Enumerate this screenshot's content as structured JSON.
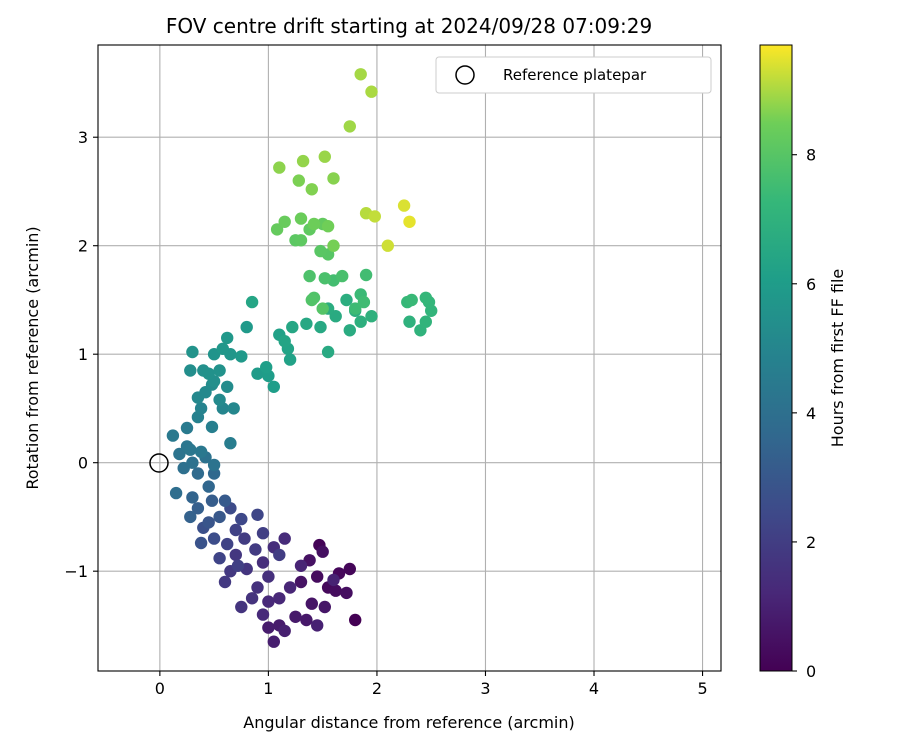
{
  "chart_data": {
    "type": "scatter",
    "title": "FOV centre drift starting at 2024/09/28 07:09:29",
    "xlabel": "Angular distance from reference (arcmin)",
    "ylabel": "Rotation from reference (arcmin)",
    "xlim": [
      -0.57,
      5.17
    ],
    "ylim": [
      -1.92,
      3.85
    ],
    "xticks": [
      0,
      1,
      2,
      3,
      4,
      5
    ],
    "yticks": [
      -1,
      0,
      1,
      2,
      3
    ],
    "xtick_labels": [
      "0",
      "1",
      "2",
      "3",
      "4",
      "5"
    ],
    "ytick_labels": [
      "−1",
      "0",
      "1",
      "2",
      "3"
    ],
    "grid": true,
    "colormap": "viridis",
    "colorbar": {
      "label": "Hours from first FF file",
      "range": [
        0,
        9.7
      ],
      "ticks": [
        0,
        2,
        4,
        6,
        8
      ],
      "tick_labels": [
        "0",
        "2",
        "4",
        "6",
        "8"
      ]
    },
    "legend": {
      "position": "top-right",
      "entries": [
        {
          "label": "Reference platepar",
          "marker": "open-circle"
        }
      ]
    },
    "reference_point": {
      "x": 0,
      "y": 0
    },
    "points": [
      [
        1.8,
        -1.45,
        0.0
      ],
      [
        1.47,
        -0.76,
        0.1
      ],
      [
        1.75,
        -0.98,
        0.15
      ],
      [
        1.65,
        -1.02,
        0.2
      ],
      [
        1.55,
        -1.15,
        0.25
      ],
      [
        1.45,
        -1.05,
        0.3
      ],
      [
        1.62,
        -1.18,
        0.35
      ],
      [
        1.72,
        -1.2,
        0.4
      ],
      [
        1.5,
        -0.82,
        0.45
      ],
      [
        1.38,
        -0.9,
        0.5
      ],
      [
        1.3,
        -1.1,
        0.55
      ],
      [
        1.4,
        -1.3,
        0.6
      ],
      [
        1.52,
        -1.33,
        0.65
      ],
      [
        1.35,
        -1.45,
        0.7
      ],
      [
        1.25,
        -1.42,
        0.75
      ],
      [
        1.1,
        -1.5,
        0.8
      ],
      [
        1.0,
        -1.52,
        0.85
      ],
      [
        1.05,
        -1.65,
        0.9
      ],
      [
        1.15,
        -1.55,
        0.95
      ],
      [
        1.45,
        -1.5,
        1.0
      ],
      [
        1.6,
        -1.08,
        1.05
      ],
      [
        1.3,
        -0.95,
        1.1
      ],
      [
        1.2,
        -1.15,
        1.15
      ],
      [
        1.1,
        -1.25,
        1.2
      ],
      [
        1.0,
        -1.28,
        1.25
      ],
      [
        0.95,
        -1.4,
        1.3
      ],
      [
        1.15,
        -0.7,
        1.35
      ],
      [
        1.05,
        -0.78,
        1.4
      ],
      [
        0.95,
        -0.92,
        1.45
      ],
      [
        1.0,
        -1.05,
        1.5
      ],
      [
        0.9,
        -1.15,
        1.55
      ],
      [
        0.85,
        -1.25,
        1.6
      ],
      [
        0.75,
        -1.33,
        1.65
      ],
      [
        0.8,
        -0.98,
        1.7
      ],
      [
        0.7,
        -0.85,
        1.75
      ],
      [
        0.65,
        -1.0,
        1.8
      ],
      [
        0.6,
        -1.1,
        1.85
      ],
      [
        0.88,
        -0.8,
        1.9
      ],
      [
        0.78,
        -0.7,
        1.95
      ],
      [
        1.1,
        -0.85,
        2.0
      ],
      [
        0.95,
        -0.65,
        2.05
      ],
      [
        0.72,
        -0.95,
        2.1
      ],
      [
        0.7,
        -0.62,
        2.15
      ],
      [
        0.62,
        -0.75,
        2.2
      ],
      [
        0.55,
        -0.88,
        2.25
      ],
      [
        0.9,
        -0.48,
        2.3
      ],
      [
        0.75,
        -0.52,
        2.4
      ],
      [
        0.65,
        -0.42,
        2.5
      ],
      [
        0.5,
        -0.7,
        2.6
      ],
      [
        0.4,
        -0.6,
        2.7
      ],
      [
        0.38,
        -0.74,
        2.8
      ],
      [
        0.45,
        -0.55,
        2.9
      ],
      [
        0.55,
        -0.5,
        3.0
      ],
      [
        0.6,
        -0.35,
        3.1
      ],
      [
        0.48,
        -0.35,
        3.2
      ],
      [
        0.35,
        -0.42,
        3.3
      ],
      [
        0.28,
        -0.5,
        3.4
      ],
      [
        0.3,
        -0.32,
        3.5
      ],
      [
        0.45,
        -0.22,
        3.6
      ],
      [
        0.5,
        -0.1,
        3.7
      ],
      [
        0.35,
        -0.1,
        3.8
      ],
      [
        0.15,
        -0.28,
        3.9
      ],
      [
        0.22,
        -0.05,
        4.0
      ],
      [
        0.3,
        0.0,
        4.05
      ],
      [
        0.42,
        0.05,
        4.1
      ],
      [
        0.5,
        -0.02,
        4.15
      ],
      [
        0.18,
        0.08,
        4.2
      ],
      [
        0.25,
        0.15,
        4.3
      ],
      [
        0.28,
        0.12,
        4.35
      ],
      [
        0.38,
        0.1,
        4.4
      ],
      [
        0.12,
        0.25,
        4.45
      ],
      [
        0.25,
        0.32,
        4.5
      ],
      [
        0.65,
        0.18,
        4.6
      ],
      [
        0.48,
        0.33,
        4.7
      ],
      [
        0.35,
        0.42,
        4.8
      ],
      [
        0.38,
        0.5,
        4.9
      ],
      [
        0.58,
        0.5,
        5.0
      ],
      [
        0.68,
        0.5,
        5.05
      ],
      [
        0.35,
        0.6,
        5.1
      ],
      [
        0.42,
        0.65,
        5.15
      ],
      [
        0.55,
        0.58,
        5.2
      ],
      [
        0.48,
        0.72,
        5.25
      ],
      [
        0.62,
        0.7,
        5.3
      ],
      [
        0.28,
        0.85,
        5.35
      ],
      [
        0.5,
        0.75,
        5.4
      ],
      [
        0.4,
        0.85,
        5.45
      ],
      [
        0.45,
        0.82,
        5.5
      ],
      [
        0.55,
        0.85,
        5.55
      ],
      [
        0.3,
        1.02,
        5.6
      ],
      [
        0.5,
        1.0,
        5.65
      ],
      [
        0.65,
        1.0,
        5.7
      ],
      [
        0.58,
        1.05,
        5.75
      ],
      [
        0.62,
        1.15,
        5.8
      ],
      [
        0.75,
        0.98,
        5.85
      ],
      [
        0.8,
        1.25,
        5.9
      ],
      [
        0.9,
        0.82,
        5.95
      ],
      [
        1.0,
        0.8,
        6.0
      ],
      [
        1.05,
        0.7,
        6.05
      ],
      [
        0.98,
        0.88,
        6.1
      ],
      [
        1.1,
        1.18,
        6.2
      ],
      [
        1.2,
        0.95,
        6.25
      ],
      [
        1.18,
        1.05,
        6.3
      ],
      [
        1.15,
        1.12,
        6.35
      ],
      [
        0.85,
        1.48,
        6.4
      ],
      [
        1.22,
        1.25,
        6.45
      ],
      [
        1.35,
        1.28,
        6.5
      ],
      [
        1.48,
        1.25,
        6.55
      ],
      [
        1.55,
        1.02,
        6.6
      ],
      [
        1.62,
        1.35,
        6.65
      ],
      [
        1.75,
        1.22,
        6.7
      ],
      [
        1.55,
        1.42,
        6.75
      ],
      [
        1.72,
        1.5,
        6.8
      ],
      [
        1.8,
        1.4,
        6.85
      ],
      [
        1.85,
        1.3,
        6.9
      ],
      [
        1.95,
        1.35,
        6.95
      ],
      [
        2.3,
        1.3,
        7.0
      ],
      [
        2.4,
        1.22,
        7.05
      ],
      [
        2.45,
        1.3,
        7.1
      ],
      [
        2.5,
        1.4,
        7.15
      ],
      [
        2.48,
        1.48,
        7.2
      ],
      [
        2.45,
        1.52,
        7.25
      ],
      [
        2.28,
        1.48,
        7.3
      ],
      [
        2.32,
        1.5,
        7.35
      ],
      [
        1.85,
        1.55,
        7.4
      ],
      [
        1.8,
        1.42,
        7.45
      ],
      [
        1.88,
        1.48,
        7.5
      ],
      [
        1.9,
        1.73,
        7.55
      ],
      [
        1.6,
        1.68,
        7.6
      ],
      [
        1.68,
        1.72,
        7.7
      ],
      [
        1.52,
        1.7,
        7.75
      ],
      [
        1.38,
        1.72,
        7.8
      ],
      [
        1.42,
        1.52,
        7.85
      ],
      [
        1.4,
        1.5,
        7.9
      ],
      [
        1.5,
        1.42,
        7.95
      ],
      [
        1.55,
        1.92,
        8.0
      ],
      [
        1.48,
        1.95,
        8.05
      ],
      [
        1.25,
        2.05,
        8.1
      ],
      [
        1.3,
        2.05,
        8.15
      ],
      [
        1.38,
        2.15,
        8.2
      ],
      [
        1.5,
        2.2,
        8.25
      ],
      [
        1.08,
        2.15,
        8.3
      ],
      [
        1.15,
        2.22,
        8.35
      ],
      [
        1.3,
        2.25,
        8.4
      ],
      [
        1.42,
        2.2,
        8.45
      ],
      [
        1.55,
        2.18,
        8.5
      ],
      [
        1.6,
        2.0,
        8.55
      ],
      [
        1.28,
        2.6,
        8.6
      ],
      [
        1.4,
        2.52,
        8.65
      ],
      [
        1.6,
        2.62,
        8.7
      ],
      [
        1.1,
        2.72,
        8.75
      ],
      [
        1.32,
        2.78,
        8.8
      ],
      [
        1.52,
        2.82,
        8.85
      ],
      [
        1.75,
        3.1,
        8.9
      ],
      [
        1.85,
        3.58,
        8.95
      ],
      [
        1.95,
        3.42,
        9.0
      ],
      [
        1.9,
        2.3,
        9.1
      ],
      [
        1.98,
        2.27,
        9.2
      ],
      [
        2.1,
        2.0,
        9.3
      ],
      [
        2.25,
        2.37,
        9.4
      ],
      [
        2.3,
        2.22,
        9.5
      ]
    ]
  }
}
